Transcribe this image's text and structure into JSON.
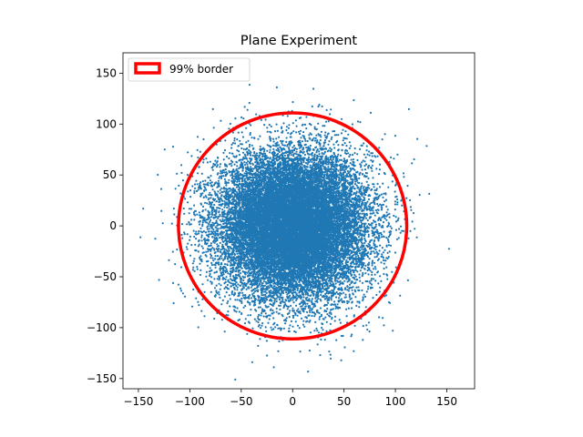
{
  "chart_data": {
    "type": "scatter",
    "title": "Plane Experiment",
    "xlabel": "",
    "ylabel": "",
    "xlim": [
      -165,
      177
    ],
    "ylim": [
      -160,
      170
    ],
    "xticks": [
      -150,
      -100,
      -50,
      0,
      50,
      100,
      150
    ],
    "yticks": [
      -150,
      -100,
      -50,
      0,
      50,
      100,
      150
    ],
    "xtick_labels": [
      "−150",
      "−100",
      "−50",
      "0",
      "50",
      "100",
      "150"
    ],
    "ytick_labels": [
      "−150",
      "−100",
      "−50",
      "0",
      "50",
      "100",
      "150"
    ],
    "grid": false,
    "series": [
      {
        "name": "points",
        "kind": "scatter",
        "color": "#1f77b4",
        "distribution": "2D normal around (0, 0), sigma approx 36, ~20000 points",
        "center": [
          0,
          0
        ],
        "sigma": 36,
        "count": 20000
      },
      {
        "name": "99% border",
        "kind": "circle",
        "color": "#ff0000",
        "center": [
          0,
          0
        ],
        "radius": 111
      }
    ],
    "legend": {
      "location": "upper left",
      "entries": [
        {
          "label": "99% border",
          "edge_color": "#ff0000",
          "face_color": "#ffffff"
        }
      ]
    }
  }
}
